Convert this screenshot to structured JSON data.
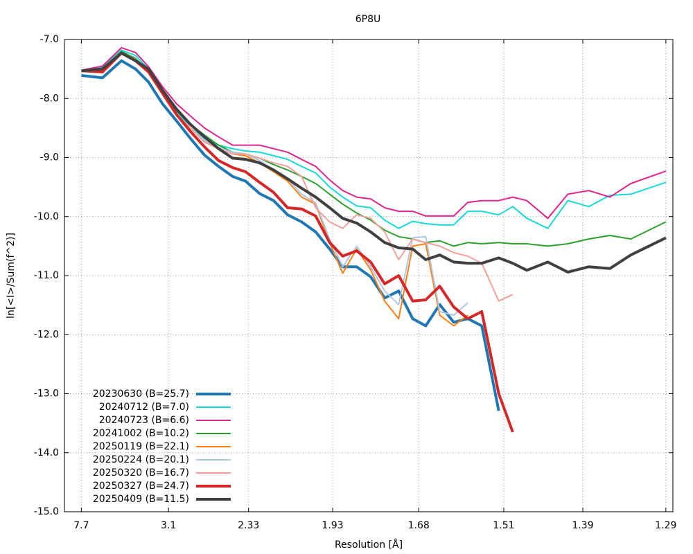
{
  "chart_data": {
    "type": "line",
    "title": "6P8U",
    "x_label": "Resolution [Å]",
    "y_label": "ln[<I>/Sum(f^2)]",
    "x": [
      0.017,
      0.038,
      0.057,
      0.071,
      0.084,
      0.098,
      0.112,
      0.126,
      0.14,
      0.154,
      0.168,
      0.181,
      0.195,
      0.209,
      0.223,
      0.237,
      0.251,
      0.265,
      0.278,
      0.292,
      0.306,
      0.32,
      0.334,
      0.348,
      0.361,
      0.375,
      0.389,
      0.403,
      0.417,
      0.434,
      0.448,
      0.462,
      0.483,
      0.503,
      0.524,
      0.545,
      0.566,
      0.601
    ],
    "xlim": [
      0,
      0.608
    ],
    "ylim": [
      -15,
      -7
    ],
    "xticks": [
      {
        "value": 0.0169,
        "label": "7.7"
      },
      {
        "value": 0.104,
        "label": "3.1"
      },
      {
        "value": 0.184,
        "label": "2.33"
      },
      {
        "value": 0.268,
        "label": "1.93"
      },
      {
        "value": 0.354,
        "label": "1.68"
      },
      {
        "value": 0.439,
        "label": "1.51"
      },
      {
        "value": 0.518,
        "label": "1.39"
      },
      {
        "value": 0.601,
        "label": "1.29"
      }
    ],
    "yticks": [
      {
        "value": -7,
        "label": "-7.0"
      },
      {
        "value": -8,
        "label": "-8.0"
      },
      {
        "value": -9,
        "label": "-9.0"
      },
      {
        "value": -10,
        "label": "-10.0"
      },
      {
        "value": -11,
        "label": "-11.0"
      },
      {
        "value": -12,
        "label": "-12.0"
      },
      {
        "value": -13,
        "label": "-13.0"
      },
      {
        "value": -14,
        "label": "-14.0"
      },
      {
        "value": -15,
        "label": "-15.0"
      }
    ],
    "grid": true,
    "legend": "lower left",
    "series": [
      {
        "name": "20230630 (B=25.7)",
        "color": "#1f77b4",
        "line_width": 4,
        "values": [
          -7.61,
          -7.65,
          -7.36,
          -7.5,
          -7.72,
          -8.09,
          -8.38,
          -8.68,
          -8.96,
          -9.15,
          -9.32,
          -9.4,
          -9.61,
          -9.73,
          -9.97,
          -10.09,
          -10.26,
          -10.55,
          -10.85,
          -10.85,
          -11.02,
          -11.38,
          -11.26,
          -11.73,
          -11.85,
          -11.49,
          -11.79,
          -11.73,
          -11.85,
          -13.29,
          null,
          null,
          null,
          null,
          null,
          null,
          null,
          null
        ]
      },
      {
        "name": "20240712 (B=7.0)",
        "color": "#17d9d9",
        "line_width": 2,
        "values": [
          -7.53,
          -7.47,
          -7.18,
          -7.27,
          -7.5,
          -7.86,
          -8.21,
          -8.5,
          -8.68,
          -8.79,
          -8.85,
          -8.89,
          -8.91,
          -8.97,
          -9.03,
          -9.15,
          -9.26,
          -9.5,
          -9.67,
          -9.82,
          -9.85,
          -10.06,
          -10.2,
          -10.08,
          -10.12,
          -10.14,
          -10.14,
          -9.91,
          -9.91,
          -9.97,
          -9.83,
          -10.03,
          -10.2,
          -9.73,
          -9.83,
          -9.64,
          -9.62,
          -9.42
        ]
      },
      {
        "name": "20240723 (B=6.6)",
        "color": "#e0248e",
        "line_width": 2,
        "values": [
          -7.52,
          -7.45,
          -7.14,
          -7.22,
          -7.46,
          -7.8,
          -8.09,
          -8.3,
          -8.5,
          -8.65,
          -8.79,
          -8.79,
          -8.79,
          -8.85,
          -8.91,
          -9.03,
          -9.15,
          -9.38,
          -9.56,
          -9.67,
          -9.7,
          -9.85,
          -9.91,
          -9.91,
          -9.99,
          -9.99,
          -9.99,
          -9.76,
          -9.73,
          -9.73,
          -9.67,
          -9.73,
          -10.03,
          -9.62,
          -9.56,
          -9.67,
          -9.44,
          -9.23
        ]
      },
      {
        "name": "20241002 (B=10.2)",
        "color": "#2ca02c",
        "line_width": 2,
        "values": [
          -7.53,
          -7.49,
          -7.2,
          -7.32,
          -7.53,
          -7.86,
          -8.21,
          -8.44,
          -8.62,
          -8.79,
          -8.91,
          -8.94,
          -9.01,
          -9.12,
          -9.21,
          -9.32,
          -9.44,
          -9.62,
          -9.79,
          -9.94,
          -10.06,
          -10.23,
          -10.34,
          -10.38,
          -10.44,
          -10.41,
          -10.5,
          -10.44,
          -10.46,
          -10.44,
          -10.46,
          -10.46,
          -10.5,
          -10.46,
          -10.38,
          -10.32,
          -10.38,
          -10.09
        ]
      },
      {
        "name": "20250119 (B=22.1)",
        "color": "#ff7f0e",
        "line_width": 2,
        "values": [
          -7.53,
          -7.49,
          -7.22,
          -7.34,
          -7.55,
          -7.91,
          -8.27,
          -8.5,
          -8.74,
          -8.85,
          -8.94,
          -8.97,
          -9.09,
          -9.24,
          -9.4,
          -9.67,
          -9.79,
          -10.44,
          -10.96,
          -10.55,
          -10.9,
          -11.43,
          -11.73,
          -10.5,
          -10.46,
          -11.67,
          -11.85,
          -11.67,
          null,
          null,
          null,
          null,
          null,
          null,
          null,
          null,
          null,
          null
        ]
      },
      {
        "name": "20250224 (B=20.1)",
        "color": "#aec7e8",
        "line_width": 2,
        "values": [
          -7.53,
          -7.49,
          -7.22,
          -7.34,
          -7.55,
          -7.91,
          -8.27,
          -8.5,
          -8.71,
          -8.83,
          -8.91,
          -8.94,
          -9.05,
          -9.21,
          -9.36,
          -9.62,
          -9.77,
          -10.38,
          -10.85,
          -10.5,
          -10.85,
          -11.26,
          -11.49,
          -10.36,
          -10.34,
          -11.61,
          -11.67,
          -11.46,
          null,
          null,
          null,
          null,
          null,
          null,
          null,
          null,
          null,
          null
        ]
      },
      {
        "name": "20250320 (B=16.7)",
        "color": "#f4a09c",
        "line_width": 2,
        "values": [
          -7.53,
          -7.49,
          -7.22,
          -7.34,
          -7.55,
          -7.91,
          -8.27,
          -8.5,
          -8.74,
          -8.85,
          -8.94,
          -8.94,
          -9.01,
          -9.09,
          -9.15,
          -9.32,
          -9.85,
          -10.09,
          -10.2,
          -9.97,
          -10.03,
          -10.26,
          -10.73,
          -10.38,
          -10.44,
          -10.5,
          -10.61,
          -10.67,
          -10.79,
          -11.43,
          -11.32,
          null,
          null,
          null,
          null,
          null,
          null,
          null
        ]
      },
      {
        "name": "20250327 (B=24.7)",
        "color": "#d62728",
        "line_width": 4,
        "values": [
          -7.53,
          -7.55,
          -7.23,
          -7.36,
          -7.55,
          -7.91,
          -8.27,
          -8.56,
          -8.82,
          -9.05,
          -9.17,
          -9.24,
          -9.42,
          -9.59,
          -9.85,
          -9.87,
          -9.99,
          -10.44,
          -10.67,
          -10.58,
          -10.77,
          -11.14,
          -11.0,
          -11.43,
          -11.41,
          -11.18,
          -11.53,
          -11.73,
          -11.61,
          -13.0,
          -13.65,
          null,
          null,
          null,
          null,
          null,
          null,
          null
        ]
      },
      {
        "name": "20250409 (B=11.5)",
        "color": "#404040",
        "line_width": 4,
        "values": [
          -7.53,
          -7.5,
          -7.23,
          -7.36,
          -7.5,
          -7.86,
          -8.18,
          -8.44,
          -8.65,
          -8.85,
          -9.01,
          -9.03,
          -9.09,
          -9.21,
          -9.36,
          -9.52,
          -9.67,
          -9.85,
          -10.03,
          -10.11,
          -10.26,
          -10.44,
          -10.53,
          -10.55,
          -10.73,
          -10.65,
          -10.77,
          -10.79,
          -10.79,
          -10.7,
          -10.79,
          -10.91,
          -10.77,
          -10.94,
          -10.85,
          -10.88,
          -10.65,
          -10.36
        ]
      }
    ]
  }
}
